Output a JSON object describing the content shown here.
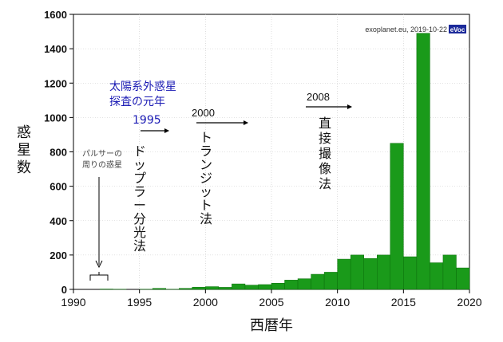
{
  "chart_data": {
    "type": "bar",
    "xlabel": "西暦年",
    "ylabel": "惑星数",
    "xlim": [
      1990,
      2020
    ],
    "ylim": [
      0,
      1600
    ],
    "xticks": [
      "1990",
      "1995",
      "2000",
      "2005",
      "2010",
      "2015",
      "2020"
    ],
    "yticks": [
      "0",
      "200",
      "400",
      "600",
      "800",
      "1000",
      "1200",
      "1400",
      "1600"
    ],
    "color": "#1a9a1a",
    "grid": true,
    "x": [
      1989,
      1990,
      1991,
      1992,
      1993,
      1994,
      1995,
      1996,
      1997,
      1998,
      1999,
      2000,
      2001,
      2002,
      2003,
      2004,
      2005,
      2006,
      2007,
      2008,
      2009,
      2010,
      2011,
      2012,
      2013,
      2014,
      2015,
      2016,
      2017,
      2018,
      2019
    ],
    "values": [
      1,
      0,
      0,
      2,
      1,
      0,
      1,
      6,
      1,
      6,
      13,
      16,
      12,
      32,
      25,
      28,
      36,
      54,
      62,
      88,
      100,
      176,
      200,
      180,
      200,
      850,
      190,
      1490,
      155,
      200,
      125
    ],
    "credit": "exoplanet.eu, 2019-10-22",
    "credit_badge": "eVoc",
    "annotations": {
      "blue_line1": "太陽系外惑星",
      "blue_line2": "探査の元年",
      "year_1995": "1995",
      "doppler": "ドップラー分光法",
      "year_2000": "2000",
      "transit": "トランジット法",
      "year_2008": "2008",
      "direct": "直接撮像法",
      "pulsar_line1": "パルサーの",
      "pulsar_line2": "周りの惑星"
    }
  }
}
